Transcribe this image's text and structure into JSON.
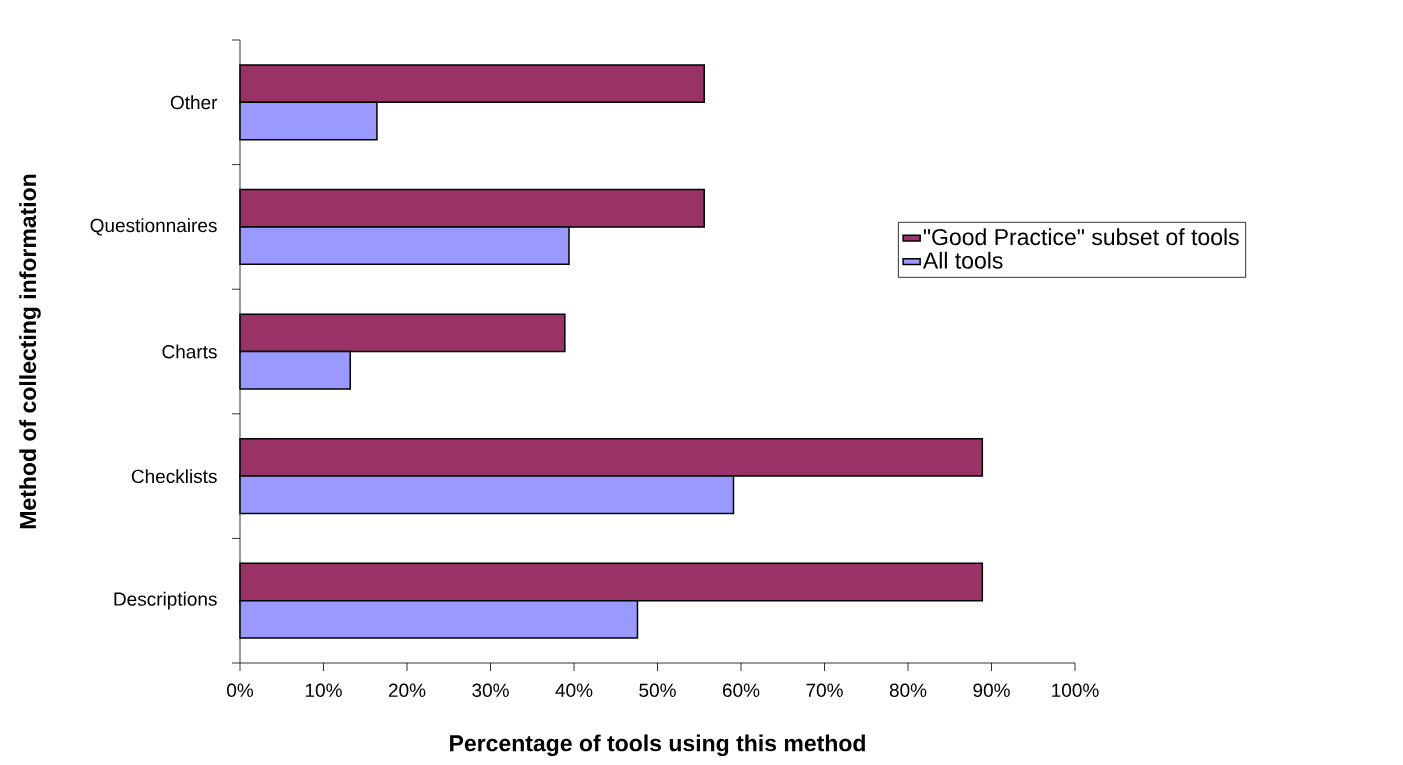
{
  "chart_data": {
    "type": "bar",
    "orientation": "horizontal",
    "xlabel": "Percentage of tools using this method",
    "ylabel": "Method of collecting information",
    "categories": [
      "Other",
      "Questionnaires",
      "Charts",
      "Checklists",
      "Descriptions"
    ],
    "series": [
      {
        "name": "\"Good Practice\" subset of tools",
        "color": "#993366",
        "values": [
          55.6,
          55.6,
          38.9,
          88.9,
          88.9
        ]
      },
      {
        "name": "All tools",
        "color": "#9999ff",
        "values": [
          16.4,
          39.4,
          13.2,
          59.1,
          47.6
        ]
      }
    ],
    "xlim": [
      0,
      100
    ],
    "xticks": [
      {
        "value": 0,
        "label": "0%"
      },
      {
        "value": 10,
        "label": "10%"
      },
      {
        "value": 20,
        "label": "20%"
      },
      {
        "value": 30,
        "label": "30%"
      },
      {
        "value": 40,
        "label": "40%"
      },
      {
        "value": 50,
        "label": "50%"
      },
      {
        "value": 60,
        "label": "60%"
      },
      {
        "value": 70,
        "label": "70%"
      },
      {
        "value": 80,
        "label": "80%"
      },
      {
        "value": 90,
        "label": "90%"
      },
      {
        "value": 100,
        "label": "100%"
      }
    ],
    "legend": "right"
  }
}
